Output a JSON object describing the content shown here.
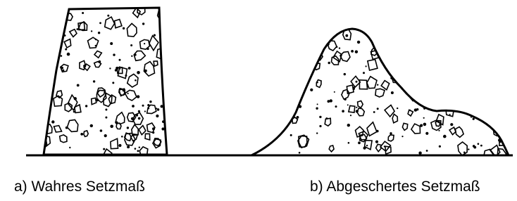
{
  "figures": [
    {
      "caption": "a) Wahres Setzmaß"
    },
    {
      "caption": "b) Abgeschertes Setzmaß"
    }
  ]
}
